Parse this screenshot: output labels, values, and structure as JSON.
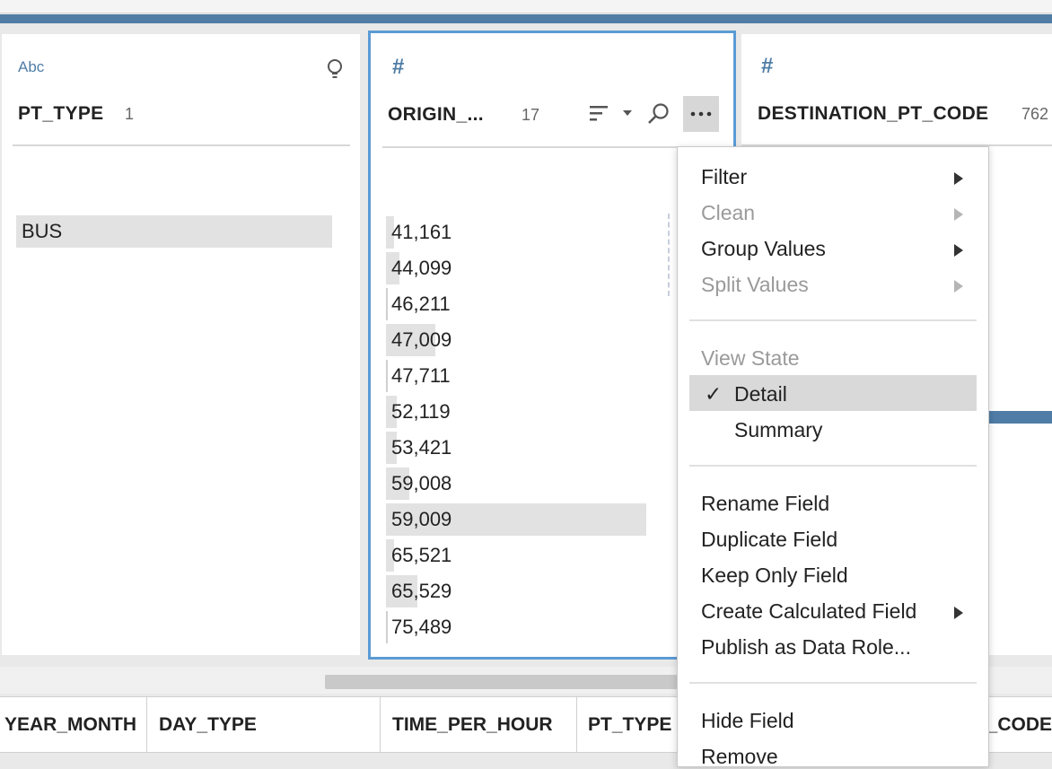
{
  "colors": {
    "accent": "#4f7da6",
    "selection_border": "#5b9bd5",
    "bar_fill": "#e2e2e2"
  },
  "cards": [
    {
      "type_label": "Abc",
      "type_icon": "text-type-icon",
      "name": "PT_TYPE",
      "count": "1",
      "values": [
        "BUS"
      ]
    },
    {
      "type_label": "#",
      "type_icon": "number-type-icon",
      "name": "ORIGIN_...",
      "count": "17",
      "values": [
        "41,161",
        "44,099",
        "46,211",
        "47,009",
        "47,711",
        "52,119",
        "53,421",
        "59,008",
        "59,009",
        "65,521",
        "65,529",
        "75,489"
      ],
      "bar_fractions": [
        0.03,
        0.05,
        0.0,
        0.19,
        0.0,
        0.04,
        0.04,
        0.09,
        1.0,
        0.03,
        0.12,
        0.0
      ]
    },
    {
      "type_label": "#",
      "type_icon": "number-type-icon",
      "name": "DESTINATION_PT_CODE",
      "count": "762"
    }
  ],
  "context_menu": {
    "items": [
      {
        "label": "Filter",
        "enabled": true,
        "submenu": true
      },
      {
        "label": "Clean",
        "enabled": false,
        "submenu": true
      },
      {
        "label": "Group Values",
        "enabled": true,
        "submenu": true
      },
      {
        "label": "Split Values",
        "enabled": false,
        "submenu": true
      },
      {
        "label": "View State",
        "enabled": false,
        "submenu": false
      },
      {
        "label": "Detail",
        "enabled": true,
        "checked": true
      },
      {
        "label": "Summary",
        "enabled": true
      },
      {
        "label": "Rename Field",
        "enabled": true
      },
      {
        "label": "Duplicate Field",
        "enabled": true
      },
      {
        "label": "Keep Only Field",
        "enabled": true
      },
      {
        "label": "Create Calculated Field",
        "enabled": true,
        "submenu": true
      },
      {
        "label": "Publish as Data Role...",
        "enabled": true
      },
      {
        "label": "Hide Field",
        "enabled": true
      },
      {
        "label": "Remove",
        "enabled": true
      }
    ],
    "check_glyph": "✓"
  },
  "grid_headers": [
    "YEAR_MONTH",
    "DAY_TYPE",
    "TIME_PER_HOUR",
    "PT_TYPE",
    "ORIGIN_PT_CODE"
  ]
}
